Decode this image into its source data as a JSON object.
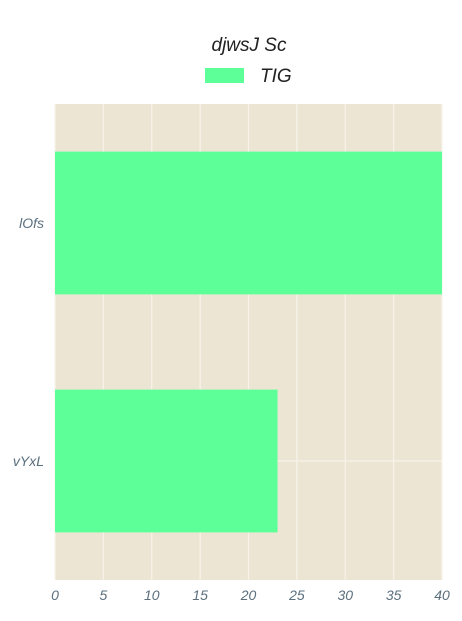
{
  "chart_data": {
    "type": "bar",
    "orientation": "horizontal",
    "title": "djwsJ Sc",
    "categories": [
      "lOfs",
      "vYxL"
    ],
    "series": [
      {
        "name": "TIG",
        "values": [
          40,
          23
        ],
        "color": "#5cff98"
      }
    ],
    "xlabel": "",
    "ylabel": "",
    "xlim": [
      0,
      40
    ],
    "xticks": [
      "0",
      "5",
      "10",
      "15",
      "20",
      "25",
      "30",
      "35",
      "40"
    ],
    "grid": true,
    "legend_position": "top-center",
    "colors": {
      "plot_background": "#ede5d3",
      "grid": "#f7f3ea",
      "bar": "#5cff98"
    }
  }
}
